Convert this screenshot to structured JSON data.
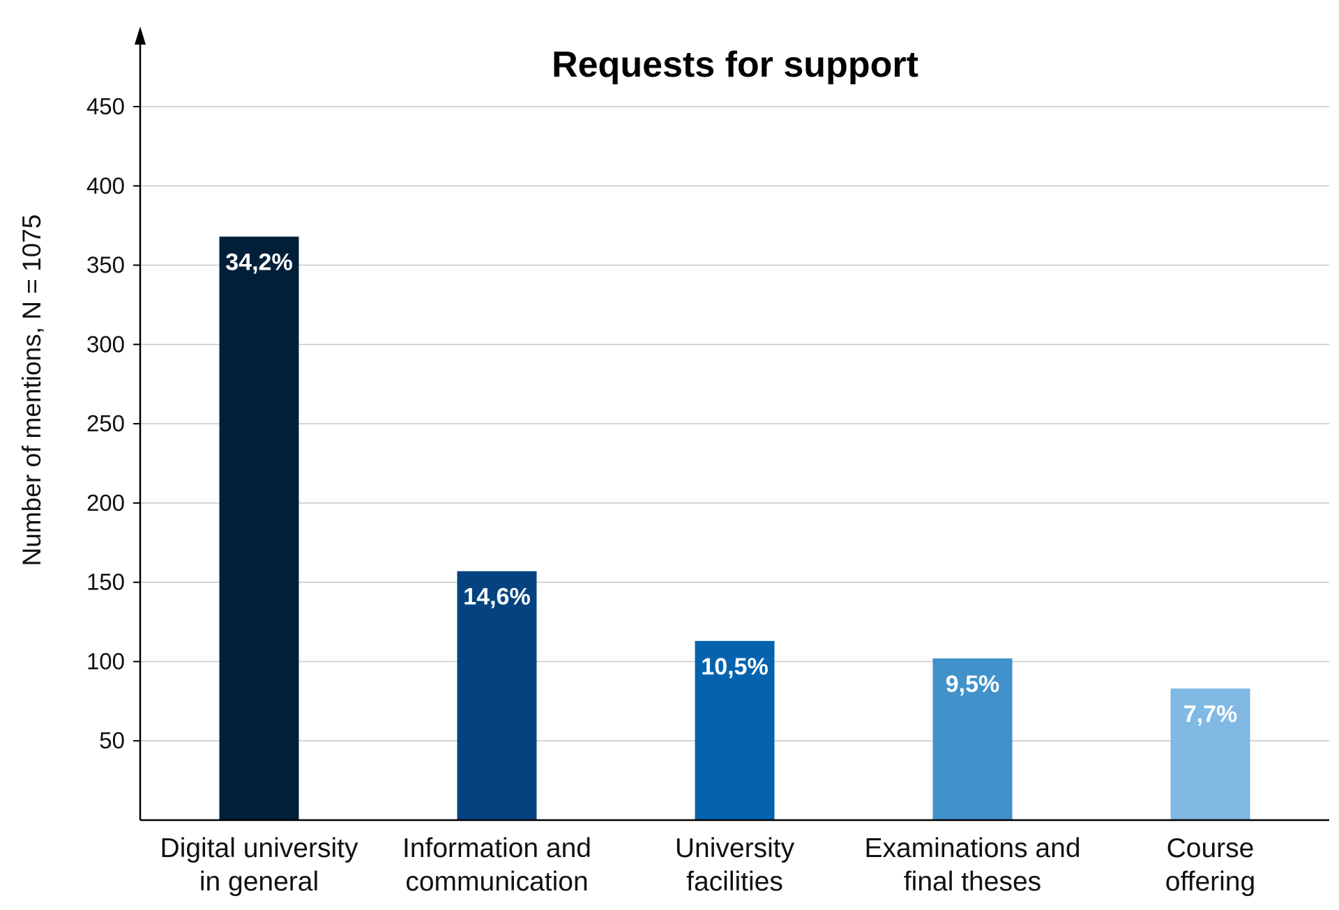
{
  "chart_data": {
    "type": "bar",
    "title": "Requests for support",
    "ylabel": "Number of mentions, N = 1075",
    "xlabel": "",
    "ylim": [
      0,
      450
    ],
    "yticks": [
      50,
      100,
      150,
      200,
      250,
      300,
      350,
      400,
      450
    ],
    "grid": true,
    "categories": [
      [
        "Digital university",
        "in general"
      ],
      [
        "Information and",
        "communication"
      ],
      [
        "University",
        "facilities"
      ],
      [
        "Examinations and",
        "final theses"
      ],
      [
        "Course",
        "offering"
      ]
    ],
    "values": [
      368,
      157,
      113,
      102,
      83
    ],
    "data_labels": [
      "34,2%",
      "14,6%",
      "10,5%",
      "9,5%",
      "7,7%"
    ],
    "colors": [
      "#021f3a",
      "#04437f",
      "#0563ae",
      "#4192ca",
      "#80b9e4"
    ]
  }
}
